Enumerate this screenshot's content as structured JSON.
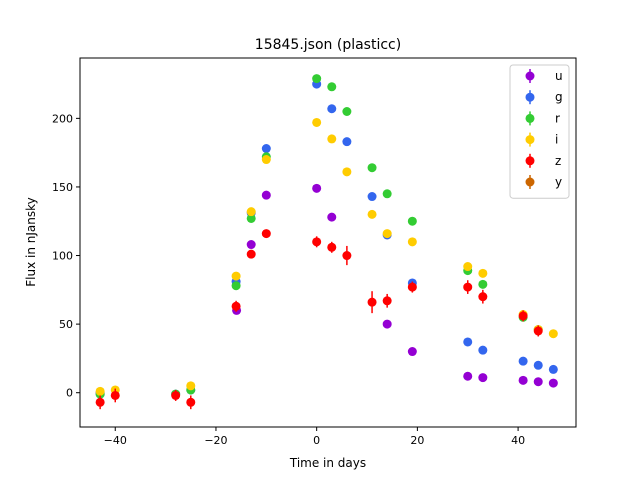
{
  "chart_data": {
    "type": "scatter",
    "title": "15845.json (plasticc)",
    "xlabel": "Time in days",
    "ylabel": "Flux in nJansky",
    "xlim": [
      -47,
      51.5
    ],
    "ylim": [
      -25,
      244
    ],
    "xticks": [
      -40,
      -20,
      0,
      20,
      40
    ],
    "yticks": [
      0,
      50,
      100,
      150,
      200
    ],
    "legend_position": "top-right",
    "series": [
      {
        "name": "u",
        "color": "#9400d3",
        "points": [
          [
            -43,
            0,
            2
          ],
          [
            -15.9,
            60,
            2
          ],
          [
            -13,
            108,
            2
          ],
          [
            -10,
            144,
            2
          ],
          [
            0,
            149,
            2
          ],
          [
            3,
            128,
            2
          ],
          [
            14,
            50,
            2
          ],
          [
            19,
            30,
            2
          ],
          [
            30,
            12,
            2
          ],
          [
            33,
            11,
            2
          ],
          [
            41,
            9,
            2
          ],
          [
            44,
            8,
            2
          ],
          [
            47,
            7,
            2
          ]
        ]
      },
      {
        "name": "g",
        "color": "#3366ee",
        "points": [
          [
            -43,
            -1,
            2
          ],
          [
            -28,
            -1,
            2
          ],
          [
            -25,
            2,
            2
          ],
          [
            -16,
            81,
            2
          ],
          [
            -13,
            131,
            2
          ],
          [
            -10,
            178,
            2
          ],
          [
            0,
            225,
            2
          ],
          [
            3,
            207,
            2
          ],
          [
            6,
            183,
            2
          ],
          [
            11,
            143,
            2
          ],
          [
            14,
            115,
            2
          ],
          [
            19,
            80,
            2
          ],
          [
            30,
            37,
            2
          ],
          [
            33,
            31,
            2
          ],
          [
            41,
            23,
            2
          ],
          [
            44,
            20,
            2
          ],
          [
            47,
            17,
            2
          ]
        ]
      },
      {
        "name": "r",
        "color": "#33cc33",
        "points": [
          [
            -43,
            -1,
            2
          ],
          [
            -28,
            -1,
            2
          ],
          [
            -25,
            2,
            2
          ],
          [
            -16,
            78,
            2
          ],
          [
            -13,
            127,
            2
          ],
          [
            -10,
            172,
            2
          ],
          [
            0,
            229,
            2
          ],
          [
            3,
            223,
            2
          ],
          [
            6,
            205,
            2
          ],
          [
            11,
            164,
            2
          ],
          [
            14,
            145,
            2
          ],
          [
            19,
            125,
            2
          ],
          [
            30,
            89,
            2
          ],
          [
            33,
            79,
            2
          ],
          [
            41,
            55,
            2
          ],
          [
            44,
            46,
            2
          ]
        ]
      },
      {
        "name": "i",
        "color": "#ffcc00",
        "points": [
          [
            -43,
            1,
            2
          ],
          [
            -40,
            2,
            2
          ],
          [
            -25,
            5,
            2
          ],
          [
            -16,
            85,
            2
          ],
          [
            -13,
            132,
            2
          ],
          [
            -10,
            170,
            2
          ],
          [
            0,
            197,
            2
          ],
          [
            3,
            185,
            2
          ],
          [
            6,
            161,
            2
          ],
          [
            11,
            130,
            2
          ],
          [
            14,
            116,
            2
          ],
          [
            19,
            110,
            2
          ],
          [
            30,
            92,
            2
          ],
          [
            33,
            87,
            2
          ],
          [
            41,
            57,
            2
          ],
          [
            44,
            46,
            2
          ],
          [
            47,
            43,
            2
          ]
        ]
      },
      {
        "name": "z",
        "color": "#ff0000",
        "points": [
          [
            -43,
            -7,
            5
          ],
          [
            -40,
            -2,
            5
          ],
          [
            -28,
            -2,
            4
          ],
          [
            -25,
            -7,
            5
          ],
          [
            -16,
            63,
            4
          ],
          [
            -13,
            101,
            3
          ],
          [
            -10,
            116,
            3
          ],
          [
            0,
            110,
            4
          ],
          [
            3,
            106,
            4
          ],
          [
            6,
            100,
            7
          ],
          [
            11,
            66,
            8
          ],
          [
            14,
            67,
            5
          ],
          [
            19,
            77,
            4
          ],
          [
            30,
            77,
            5
          ],
          [
            33,
            70,
            5
          ],
          [
            41,
            56,
            4
          ],
          [
            44,
            45,
            4
          ]
        ]
      },
      {
        "name": "y",
        "color": "#cc6600",
        "points": []
      }
    ]
  }
}
